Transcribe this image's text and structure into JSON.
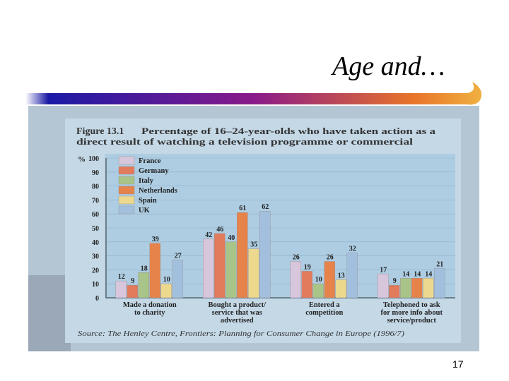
{
  "slide": {
    "title": "Age and…",
    "page_number": "17",
    "accent_colors": [
      "#1a1aa6",
      "#8a1a8a",
      "#e8742a",
      "#f0b040"
    ]
  },
  "chart_data": {
    "type": "bar",
    "figure_label": "Figure 13.1",
    "title_line1": "Percentage of 16–24-year-olds who have taken action as a",
    "title_line2": "direct result of watching a television programme or commercial",
    "ylabel": "%",
    "ylim": [
      0,
      100
    ],
    "yticks": [
      0,
      10,
      20,
      30,
      40,
      50,
      60,
      70,
      80,
      90,
      100
    ],
    "categories": [
      [
        "Made a donation",
        "to charity"
      ],
      [
        "Bought a product/",
        "service that was",
        "advertised"
      ],
      [
        "Entered a",
        "competition"
      ],
      [
        "Telephoned to ask",
        "for more info about",
        "service/product"
      ]
    ],
    "series": [
      {
        "name": "France",
        "color": "#d8c6dc",
        "values": [
          12,
          42,
          26,
          17
        ]
      },
      {
        "name": "Germany",
        "color": "#e27a5c",
        "values": [
          9,
          46,
          19,
          9
        ]
      },
      {
        "name": "Italy",
        "color": "#a8c488",
        "values": [
          18,
          40,
          10,
          14
        ]
      },
      {
        "name": "Netherlands",
        "color": "#e5834a",
        "values": [
          39,
          61,
          26,
          14
        ]
      },
      {
        "name": "Spain",
        "color": "#ecd98e",
        "values": [
          10,
          35,
          13,
          14
        ]
      },
      {
        "name": "UK",
        "color": "#a2c0de",
        "values": [
          27,
          62,
          32,
          21
        ]
      }
    ],
    "source": "Source: The Henley Centre, Frontiers: Planning for Consumer Change in Europe (1996/7)"
  }
}
